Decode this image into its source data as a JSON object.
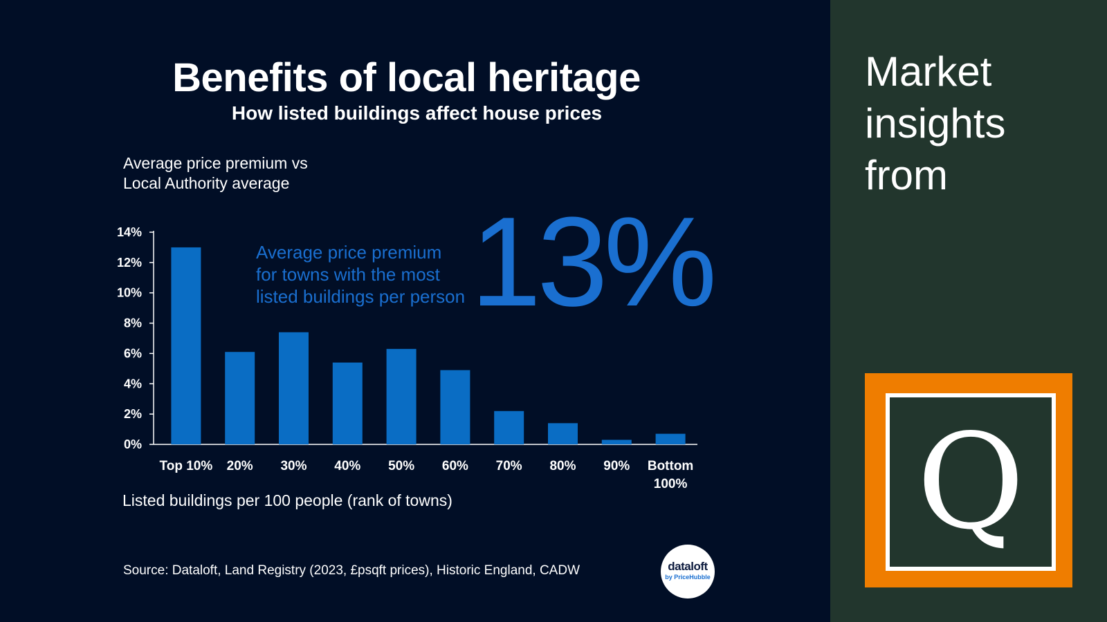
{
  "colors": {
    "background": "#010e26",
    "side_panel": "#22362d",
    "bar": "#0a6dc4",
    "accent_text": "#1a6fd0",
    "brand_orange": "#ef7d00"
  },
  "header": {
    "title": "Benefits of local heritage",
    "subtitle": "How listed buildings affect house prices"
  },
  "axis": {
    "y_label_lines": [
      "Average price premium vs",
      "Local Authority average"
    ],
    "x_label": "Listed buildings per 100 people (rank of towns)"
  },
  "callout": {
    "lines": [
      "Average price premium",
      "for towns with the most",
      "listed buildings per person"
    ],
    "value": "13%"
  },
  "footer": {
    "source": "Source: Dataloft, Land Registry (2023, £psqft prices), Historic England, CADW",
    "logo_main": "dataloft",
    "logo_sub": "by PriceHubble"
  },
  "side": {
    "heading_lines": [
      "Market",
      "insights",
      "from"
    ],
    "brand_letter": "Q"
  },
  "chart_data": {
    "type": "bar",
    "categories": [
      "Top 10%",
      "20%",
      "30%",
      "40%",
      "50%",
      "60%",
      "70%",
      "80%",
      "90%",
      "Bottom 100%"
    ],
    "category_lines": [
      [
        "Top 10%"
      ],
      [
        "20%"
      ],
      [
        "30%"
      ],
      [
        "40%"
      ],
      [
        "50%"
      ],
      [
        "60%"
      ],
      [
        "70%"
      ],
      [
        "80%"
      ],
      [
        "90%"
      ],
      [
        "Bottom",
        "100%"
      ]
    ],
    "values": [
      13.0,
      6.1,
      7.4,
      5.4,
      6.3,
      4.9,
      2.2,
      1.4,
      0.3,
      0.7
    ],
    "y_ticks": [
      "0%",
      "2%",
      "4%",
      "6%",
      "8%",
      "10%",
      "12%",
      "14%"
    ],
    "ylim": [
      0,
      14
    ],
    "title": "Benefits of local heritage",
    "subtitle": "How listed buildings affect house prices",
    "xlabel": "Listed buildings per 100 people (rank of towns)",
    "ylabel": "Average price premium vs Local Authority average",
    "grid": false,
    "legend": "none"
  }
}
